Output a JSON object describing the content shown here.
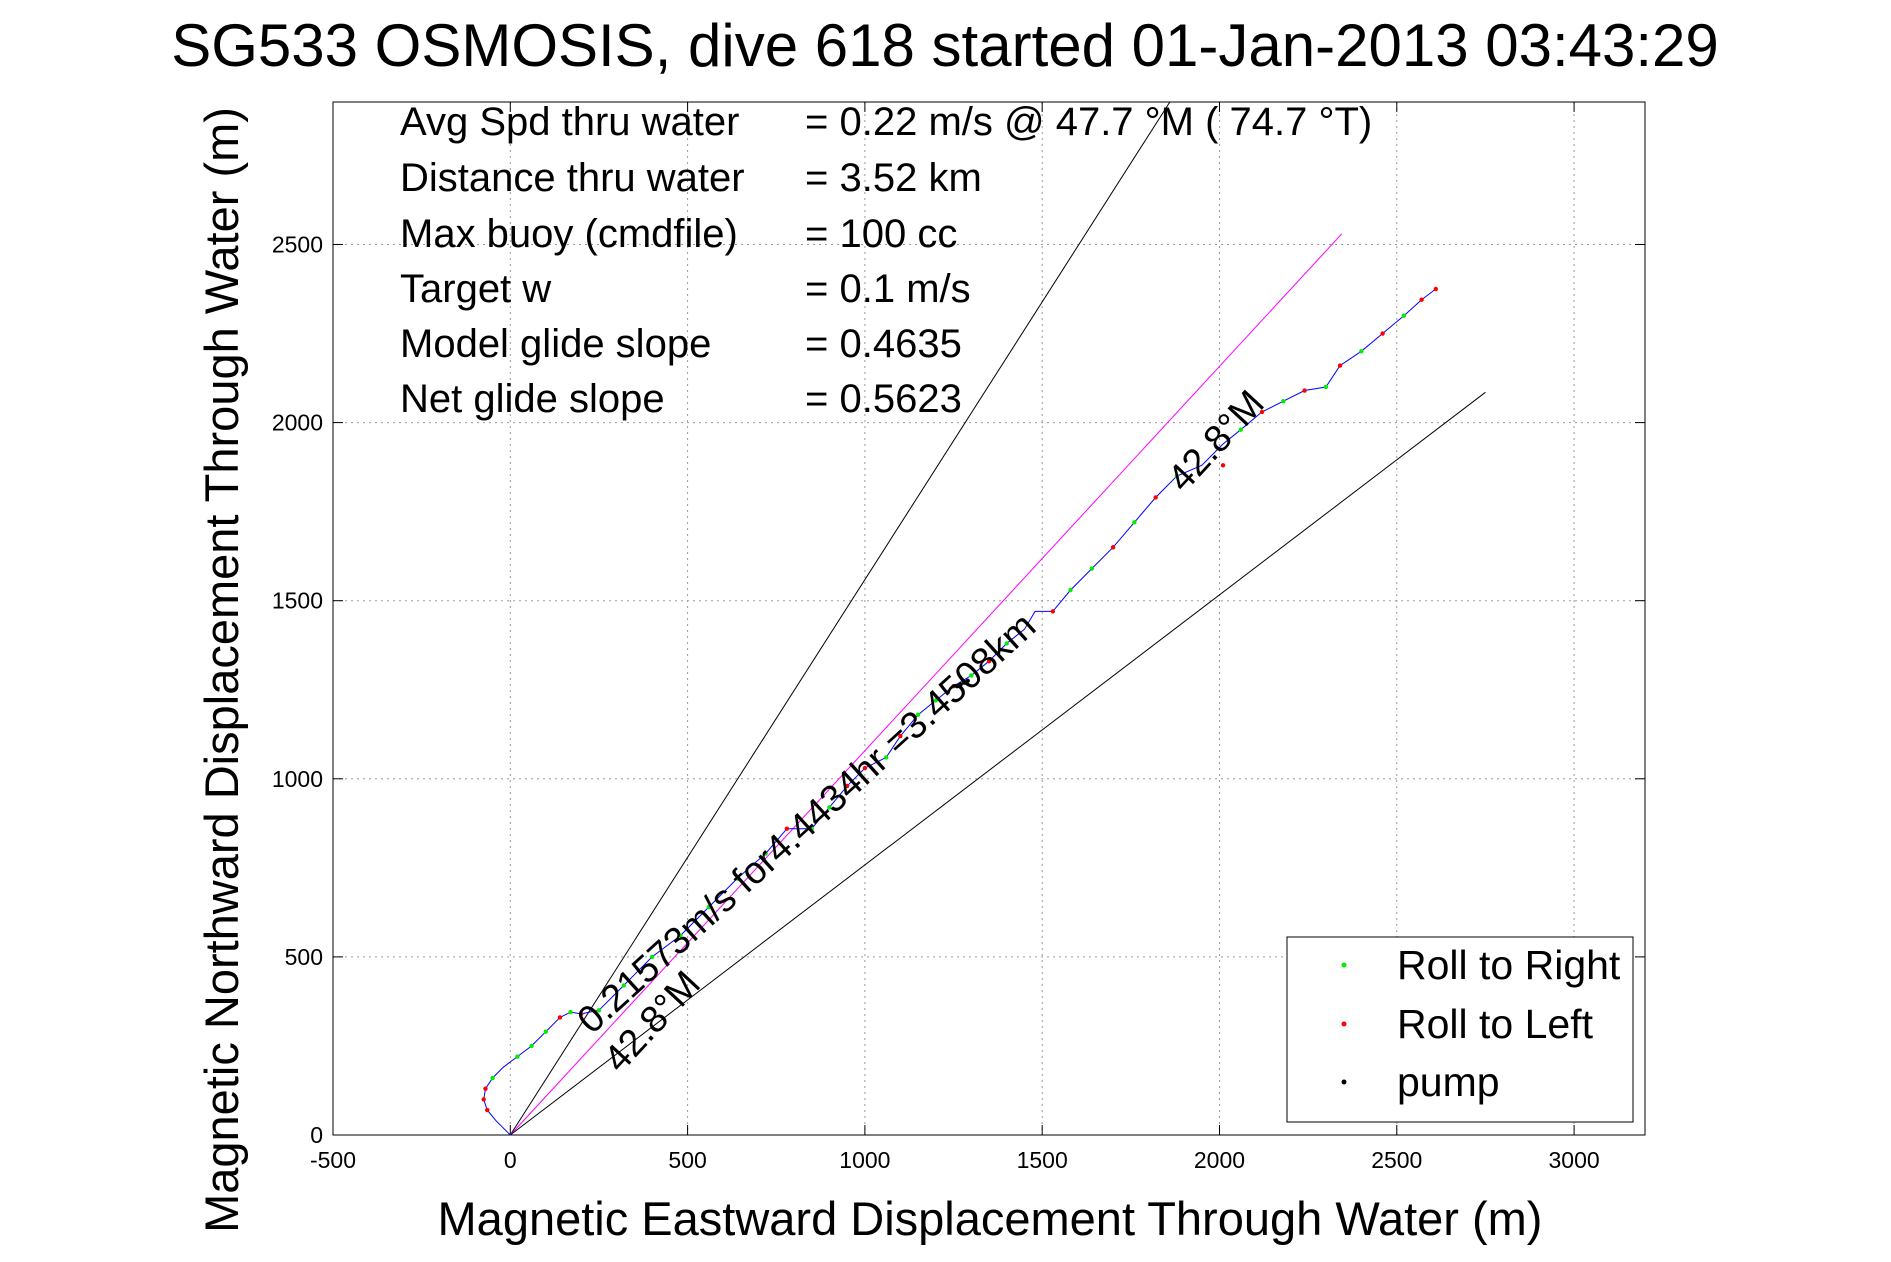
{
  "chart_data": {
    "type": "line",
    "title": "SG533 OSMOSIS, dive 618 started 01-Jan-2013 03:43:29",
    "xlabel": "Magnetic Eastward Displacement Through Water (m)",
    "ylabel": "Magnetic Northward Displacement Through Water (m)",
    "xlim": [
      -500,
      3200
    ],
    "ylim": [
      0,
      2900
    ],
    "xticks": [
      -500,
      0,
      500,
      1000,
      1500,
      2000,
      2500,
      3000
    ],
    "yticks": [
      0,
      500,
      1000,
      1500,
      2000,
      2500
    ],
    "grid": true,
    "legend_position": "bottom-right",
    "stats": [
      {
        "label": "Avg Spd thru water",
        "value": "=  0.22 m/s @  47.7 °M ( 74.7 °T)"
      },
      {
        "label": "Distance thru water",
        "value": "=  3.52 km"
      },
      {
        "label": "Max buoy (cmdfile)",
        "value": "= 100 cc"
      },
      {
        "label": "Target w",
        "value": "= 0.1 m/s"
      },
      {
        "label": "Model glide slope",
        "value": "= 0.4635"
      },
      {
        "label": "Net glide slope",
        "value": "= 0.5623"
      }
    ],
    "annotations": [
      {
        "text": "42.8°M",
        "x": 1900,
        "y": 1800,
        "angle": 47.2
      },
      {
        "text": "0.21573m/s for4.4434hr =3.4508km",
        "x": 230,
        "y": 280,
        "angle": 42.3
      },
      {
        "text": "42.8°M",
        "x": 310,
        "y": 170,
        "angle": 47.2
      }
    ],
    "reference_lines": [
      {
        "name": "upper",
        "color": "#000000",
        "x": [
          0,
          1860
        ],
        "y": [
          0,
          2900
        ]
      },
      {
        "name": "heading",
        "color": "#ff00ff",
        "x": [
          0,
          2345
        ],
        "y": [
          0,
          2530
        ]
      },
      {
        "name": "lower",
        "color": "#000000",
        "x": [
          0,
          2750
        ],
        "y": [
          0,
          2085
        ]
      }
    ],
    "series": [
      {
        "name": "track",
        "color": "#0000ff",
        "x": [
          0,
          -40,
          -65,
          -75,
          -70,
          -50,
          -20,
          20,
          60,
          100,
          140,
          170,
          200,
          250,
          290,
          320,
          350,
          400,
          480,
          560,
          640,
          720,
          780,
          850,
          900,
          950,
          1000,
          1060,
          1100,
          1150,
          1200,
          1250,
          1300,
          1350,
          1400,
          1450,
          1480,
          1530,
          1580,
          1640,
          1700,
          1760,
          1820,
          1880,
          1950,
          2010,
          2060,
          2120,
          2180,
          2240,
          2300,
          2340,
          2400,
          2460,
          2520,
          2570,
          2610
        ],
        "y": [
          0,
          40,
          70,
          100,
          130,
          160,
          190,
          220,
          250,
          290,
          330,
          345,
          340,
          350,
          390,
          420,
          450,
          500,
          560,
          640,
          720,
          790,
          860,
          860,
          920,
          980,
          1030,
          1060,
          1120,
          1180,
          1220,
          1260,
          1290,
          1330,
          1380,
          1420,
          1470,
          1470,
          1530,
          1590,
          1650,
          1720,
          1790,
          1850,
          1880,
          1940,
          1980,
          2030,
          2060,
          2090,
          2100,
          2160,
          2200,
          2250,
          2300,
          2345,
          2375
        ]
      }
    ],
    "markers": [
      {
        "name": "Roll to Right",
        "color": "#00ee00",
        "x": [
          -50,
          20,
          60,
          100,
          170,
          250,
          320,
          400,
          480,
          560,
          640,
          720,
          850,
          900,
          1060,
          1150,
          1200,
          1300,
          1400,
          1580,
          1640,
          1760,
          1880,
          2060,
          2180,
          2300,
          2400,
          2520
        ],
        "y": [
          160,
          220,
          250,
          290,
          345,
          350,
          420,
          500,
          560,
          640,
          720,
          790,
          860,
          920,
          1060,
          1180,
          1220,
          1290,
          1380,
          1530,
          1590,
          1720,
          1850,
          1980,
          2060,
          2100,
          2200,
          2300
        ]
      },
      {
        "name": "Roll to Left",
        "color": "#ff0000",
        "x": [
          -65,
          -75,
          -70,
          140,
          200,
          780,
          950,
          1000,
          1100,
          1250,
          1350,
          1530,
          1700,
          1820,
          2010,
          2120,
          2240,
          2340,
          2460,
          2570,
          2610
        ],
        "y": [
          70,
          100,
          130,
          330,
          340,
          860,
          980,
          1030,
          1120,
          1260,
          1330,
          1470,
          1650,
          1790,
          1880,
          2030,
          2090,
          2160,
          2250,
          2345,
          2375
        ]
      },
      {
        "name": "pump",
        "color": "#000000",
        "x": [
          1260,
          1270,
          1280,
          1290
        ],
        "y": [
          1260,
          1265,
          1270,
          1275
        ]
      }
    ]
  }
}
